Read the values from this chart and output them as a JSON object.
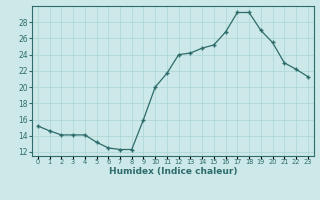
{
  "x": [
    0,
    1,
    2,
    3,
    4,
    5,
    6,
    7,
    8,
    9,
    10,
    11,
    12,
    13,
    14,
    15,
    16,
    17,
    18,
    19,
    20,
    21,
    22,
    23
  ],
  "y": [
    15.2,
    14.6,
    14.1,
    14.1,
    14.1,
    13.2,
    12.5,
    12.3,
    12.3,
    16.0,
    20.0,
    21.7,
    24.0,
    24.2,
    24.8,
    25.2,
    26.8,
    29.2,
    29.2,
    27.0,
    25.5,
    23.0,
    22.2,
    21.3
  ],
  "xlabel": "Humidex (Indice chaleur)",
  "xlim": [
    -0.5,
    23.5
  ],
  "ylim": [
    11.5,
    30.0
  ],
  "yticks": [
    12,
    14,
    16,
    18,
    20,
    22,
    24,
    26,
    28
  ],
  "xtick_labels": [
    "0",
    "1",
    "2",
    "3",
    "4",
    "5",
    "6",
    "7",
    "8",
    "9",
    "10",
    "11",
    "12",
    "13",
    "14",
    "15",
    "16",
    "17",
    "18",
    "19",
    "20",
    "21",
    "22",
    "23"
  ],
  "line_color": "#2e6b6b",
  "marker_color": "#2e6b6b",
  "bg_color": "#cce8e8",
  "grid_color": "#b0d8d8"
}
